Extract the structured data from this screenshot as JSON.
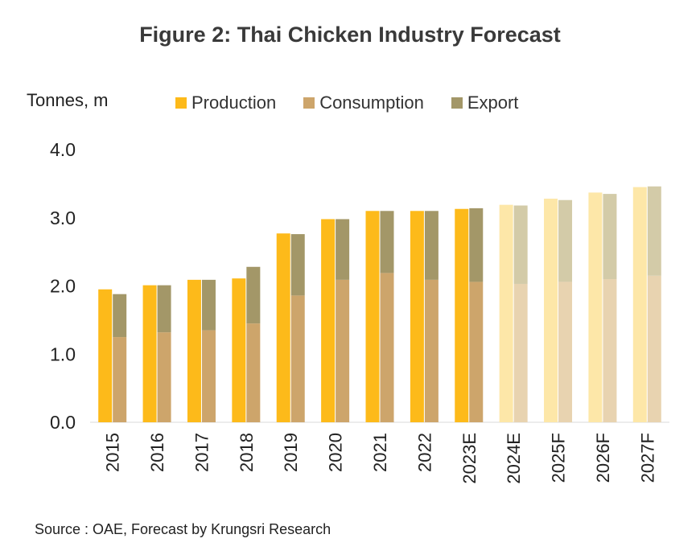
{
  "chart_data": {
    "type": "bar",
    "title": "Figure 2: Thai Chicken Industry Forecast",
    "ylabel": "Tonnes, m",
    "source": "Source : OAE, Forecast by Krungsri Research",
    "ylim": [
      0,
      4
    ],
    "yticks": [
      "0.0",
      "1.0",
      "2.0",
      "3.0",
      "4.0"
    ],
    "legend_position": "top",
    "categories": [
      "2015",
      "2016",
      "2017",
      "2018",
      "2019",
      "2020",
      "2021",
      "2022",
      "2023E",
      "2024E",
      "2025F",
      "2026F",
      "2027F"
    ],
    "forecast_from_index": 9,
    "series": [
      {
        "name": "Production",
        "values": [
          1.95,
          2.01,
          2.09,
          2.11,
          2.77,
          2.98,
          3.1,
          3.1,
          3.13,
          3.19,
          3.28,
          3.37,
          3.45
        ],
        "color": "#fdba1a",
        "color_forecast": "#fde7a8"
      },
      {
        "name": "Consumption",
        "values": [
          1.25,
          1.32,
          1.35,
          1.45,
          1.86,
          2.09,
          2.19,
          2.09,
          2.06,
          2.03,
          2.06,
          2.1,
          2.15
        ],
        "color": "#cda56b",
        "color_forecast": "#e8d3b0"
      },
      {
        "name": "Export",
        "values": [
          0.63,
          0.69,
          0.74,
          0.83,
          0.9,
          0.89,
          0.91,
          1.01,
          1.08,
          1.15,
          1.2,
          1.25,
          1.31
        ],
        "color": "#a39768",
        "color_forecast": "#d3cba8"
      }
    ]
  }
}
